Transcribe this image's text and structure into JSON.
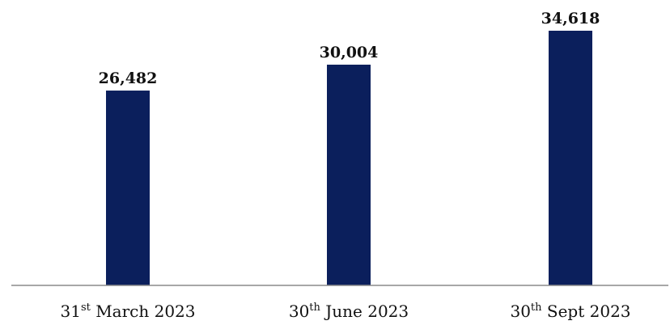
{
  "chart_data": {
    "type": "bar",
    "categories": [
      {
        "prefix": "31",
        "sup": "st",
        "rest": " March 2023"
      },
      {
        "prefix": "30",
        "sup": "th",
        "rest": " June 2023"
      },
      {
        "prefix": "30",
        "sup": "th",
        "rest": " Sept 2023"
      }
    ],
    "values": [
      26482,
      30004,
      34618
    ],
    "value_labels": [
      "26,482",
      "30,004",
      "34,618"
    ],
    "title": "",
    "xlabel": "",
    "ylabel": "",
    "ylim": [
      0,
      34618
    ],
    "grid": false,
    "legend": "none",
    "colors": {
      "bar": "#0b1f5c",
      "axis": "#8a8a8a",
      "text": "#111111"
    }
  }
}
